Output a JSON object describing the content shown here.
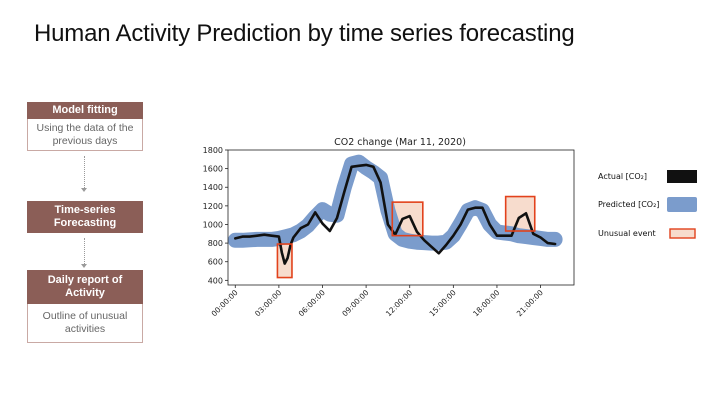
{
  "slide": {
    "title": "Human Activity Prediction by time series forecasting"
  },
  "steps": [
    {
      "heading": "Model fitting",
      "body": "Using the data of the previous days"
    },
    {
      "heading": "Time-series Forecasting",
      "body": ""
    },
    {
      "heading": "Daily report of Activity",
      "body": "Outline of unusual activities"
    }
  ],
  "colors": {
    "actual": "#111111",
    "predicted": "#7b9ccc",
    "unusual_border": "#e2421c",
    "unusual_fill": "#f7dccd",
    "step_header": "#8b5e57"
  },
  "chart_data": {
    "type": "line",
    "title": "CO2 change (Mar 11, 2020)",
    "xlabel": "",
    "ylabel": "",
    "ylim": [
      350,
      1800
    ],
    "yticks": [
      400,
      600,
      800,
      1000,
      1200,
      1400,
      1600,
      1800
    ],
    "xlim": [
      -0.5,
      23.3
    ],
    "xticks": [
      0,
      3,
      6,
      9,
      12,
      15,
      18,
      21
    ],
    "xtick_labels": [
      "00:00:00",
      "03:00:00",
      "06:00:00",
      "09:00:00",
      "12:00:00",
      "15:00:00",
      "18:00:00",
      "21:00:00"
    ],
    "legend_position": "right",
    "grid": false,
    "series": [
      {
        "name": "Actual [CO₂]",
        "x": [
          0,
          0.5,
          1,
          1.5,
          2,
          2.5,
          3,
          3.2,
          3.4,
          3.6,
          3.8,
          4,
          4.5,
          5,
          5.5,
          6,
          6.5,
          7,
          7.5,
          8,
          8.5,
          9,
          9.5,
          10,
          10.5,
          11,
          11.5,
          12,
          12.5,
          13,
          13.5,
          14,
          14.5,
          15,
          15.5,
          16,
          16.5,
          17,
          17.5,
          18,
          18.5,
          19,
          19.5,
          20,
          20.5,
          21,
          21.5,
          22
        ],
        "y": [
          850,
          870,
          870,
          880,
          890,
          880,
          870,
          700,
          580,
          640,
          780,
          860,
          960,
          1000,
          1130,
          1010,
          930,
          1070,
          1350,
          1620,
          1630,
          1640,
          1620,
          1450,
          1000,
          890,
          1060,
          1090,
          920,
          830,
          760,
          690,
          780,
          880,
          1000,
          1160,
          1180,
          1180,
          1000,
          880,
          880,
          880,
          1070,
          1120,
          900,
          860,
          800,
          790
        ]
      },
      {
        "name": "Predicted [CO₂]",
        "x": [
          0,
          0.5,
          1,
          1.5,
          2,
          2.5,
          3,
          3.5,
          4,
          4.5,
          5,
          5.5,
          6,
          6.5,
          7,
          7.5,
          8,
          8.5,
          9,
          9.5,
          10,
          10.5,
          11,
          11.5,
          12,
          12.5,
          13,
          13.5,
          14,
          14.5,
          15,
          15.5,
          16,
          16.5,
          17,
          17.5,
          18,
          18.5,
          19,
          19.5,
          20,
          20.5,
          21,
          21.5,
          22
        ],
        "y": [
          830,
          830,
          835,
          840,
          840,
          840,
          850,
          870,
          890,
          930,
          990,
          1080,
          1160,
          1110,
          1100,
          1400,
          1650,
          1670,
          1610,
          1560,
          1500,
          1150,
          900,
          840,
          820,
          810,
          805,
          800,
          800,
          810,
          880,
          1010,
          1150,
          1180,
          1150,
          1000,
          920,
          910,
          900,
          880,
          870,
          860,
          850,
          840,
          840
        ]
      },
      {
        "name": "Unusual event",
        "boxes": [
          {
            "x": [
              2.9,
              3.9
            ],
            "y": [
              430,
              790
            ]
          },
          {
            "x": [
              10.8,
              12.9
            ],
            "y": [
              880,
              1240
            ]
          },
          {
            "x": [
              18.6,
              20.6
            ],
            "y": [
              930,
              1300
            ]
          }
        ]
      }
    ]
  }
}
